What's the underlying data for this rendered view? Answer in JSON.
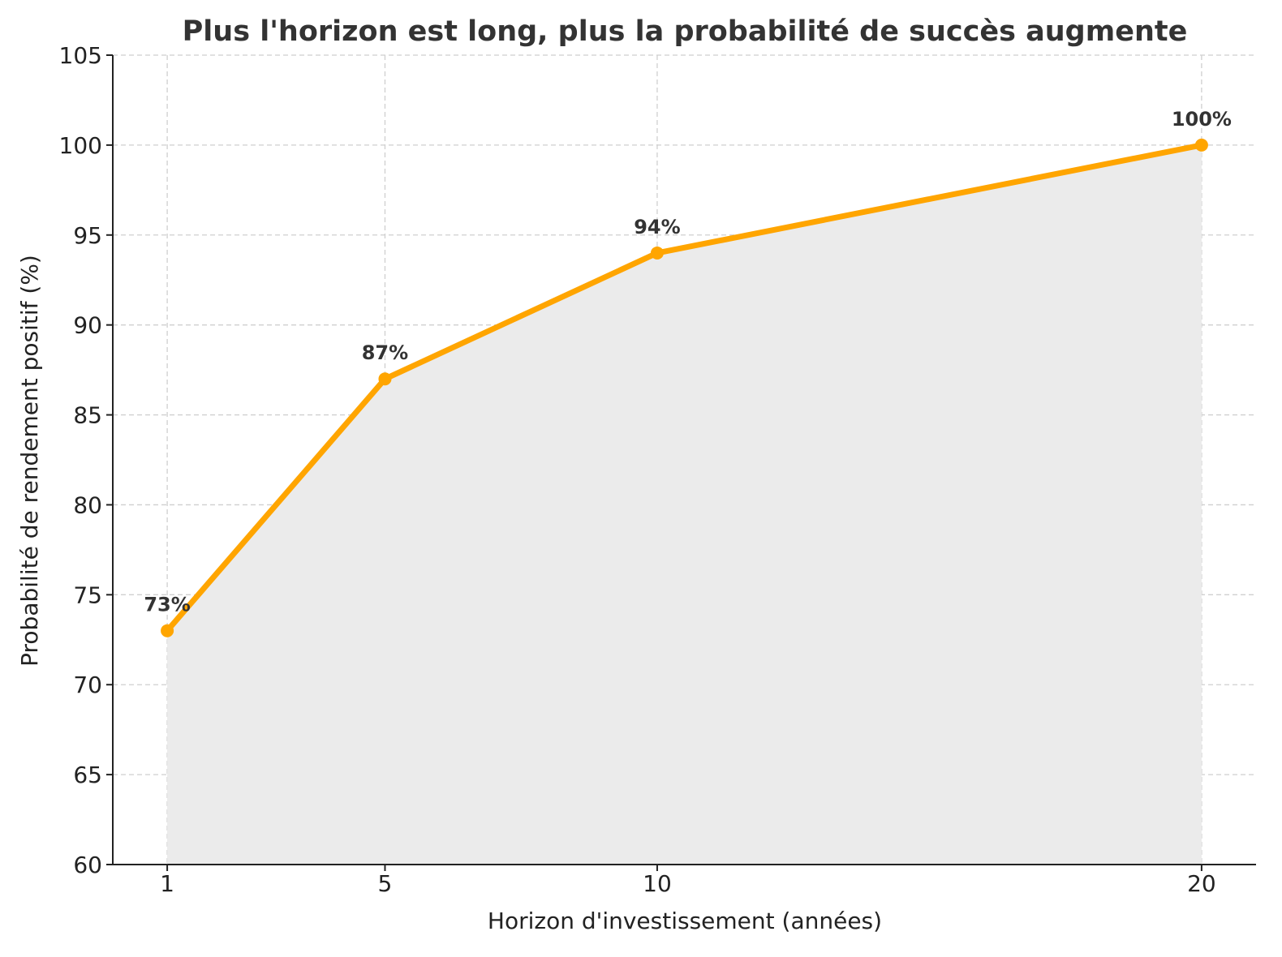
{
  "chart_data": {
    "type": "line",
    "title": "Plus l'horizon est long, plus la probabilité de succès augmente",
    "xlabel": "Horizon d'investissement (années)",
    "ylabel": "Probabilité de rendement positif (%)",
    "x": [
      1,
      5,
      10,
      20
    ],
    "x_tick_labels": [
      "1",
      "5",
      "10",
      "20"
    ],
    "series": [
      {
        "values": [
          73,
          87,
          94,
          100
        ],
        "data_labels": [
          "73%",
          "87%",
          "94%",
          "100%"
        ],
        "color": "#FFA500",
        "marker": "circle",
        "fill_below": true,
        "fill_color": "#ebebeb"
      }
    ],
    "xlim": [
      0,
      21
    ],
    "ylim": [
      60,
      105
    ],
    "y_ticks": [
      60,
      65,
      70,
      75,
      80,
      85,
      90,
      95,
      100,
      105
    ],
    "y_tick_labels": [
      "60",
      "65",
      "70",
      "75",
      "80",
      "85",
      "90",
      "95",
      "100",
      "105"
    ],
    "grid": true,
    "grid_style": "dashed"
  }
}
